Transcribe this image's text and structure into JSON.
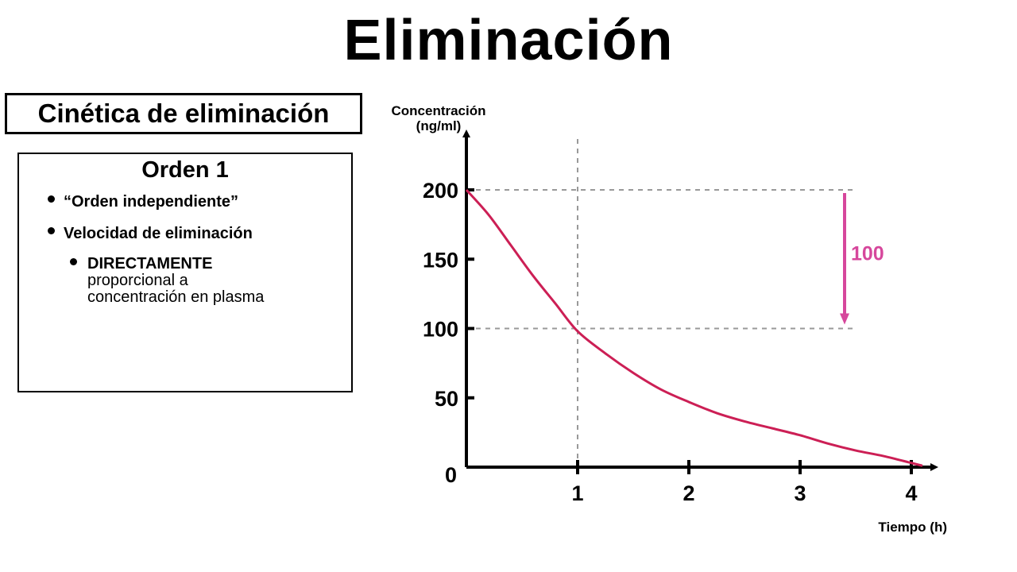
{
  "title": "Eliminación",
  "section_label": "Cinética de eliminación",
  "info_box": {
    "heading": "Orden 1",
    "bullets": [
      "“Orden independiente”",
      "Velocidad de eliminación"
    ],
    "sub_bullet": {
      "line1": "DIRECTAMENTE",
      "line2": "proporcional a",
      "line3": "concentración en plasma"
    }
  },
  "colors": {
    "curve": "#cc1f55",
    "annotation": "#d6479c",
    "guides": "#999999"
  },
  "chart_data": {
    "type": "line",
    "ylabel_line1": "Concentración",
    "ylabel_line2": "(ng/ml)",
    "xlabel": "Tiempo (h)",
    "xlim": [
      0,
      4.3
    ],
    "ylim": [
      0,
      240
    ],
    "x_ticks": [
      1,
      2,
      3,
      4
    ],
    "y_ticks": [
      0,
      50,
      100,
      150,
      200
    ],
    "grid": false,
    "series": [
      {
        "x": [
          0,
          0.2,
          0.4,
          0.6,
          0.8,
          1.0,
          1.25,
          1.5,
          1.75,
          2.0,
          2.25,
          2.5,
          2.75,
          3.0,
          3.25,
          3.5,
          3.75,
          4.0,
          4.1
        ],
        "y": [
          200,
          182,
          160,
          138,
          118,
          98,
          82,
          68,
          56,
          47,
          39,
          33,
          28,
          23,
          17,
          12,
          8,
          3,
          1
        ]
      }
    ],
    "reference_lines": {
      "h_values": [
        200,
        100
      ],
      "v_values": [
        1
      ]
    },
    "annotation": {
      "label": "100",
      "x": 3.4,
      "from": 200,
      "to": 100
    }
  }
}
